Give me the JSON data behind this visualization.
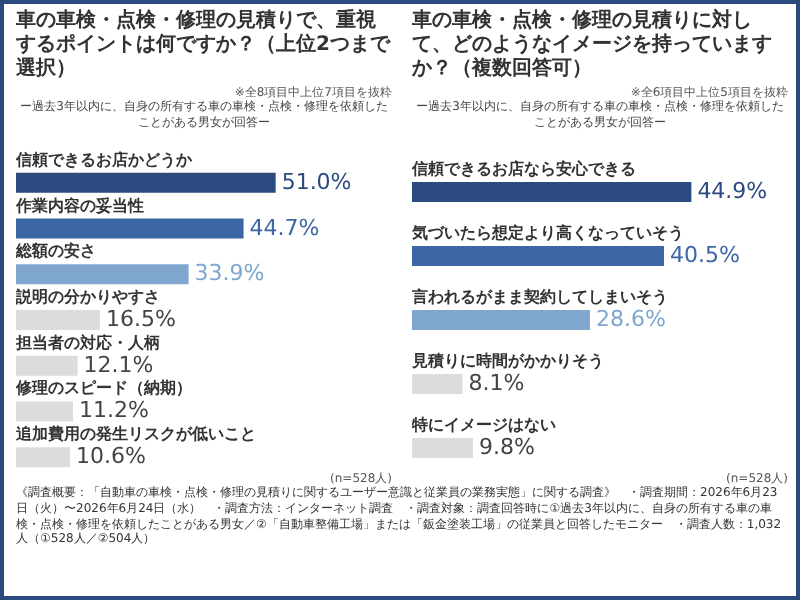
{
  "chart_data": [
    {
      "type": "bar",
      "orientation": "horizontal",
      "title": "車の車検・点検・修理の見積りで、重視するポイントは何ですか？（上位2つまで選択）",
      "subtitle": "ー過去3年以内に、自身の所有する車の車検・点検・修理を依頼したことがある男女が回答ー",
      "categories": [
        "信頼できるお店かどうか",
        "作業内容の妥当性",
        "総額の安さ",
        "説明の分かりやすさ",
        "担当者の対応・人柄",
        "修理のスピード（納期）",
        "追加費用の発生リスクが低いこと"
      ],
      "values": [
        51.0,
        44.7,
        33.9,
        16.5,
        12.1,
        11.2,
        10.6
      ],
      "value_labels": [
        "51.0%",
        "44.7%",
        "33.9%",
        "16.5%",
        "12.1%",
        "11.2%",
        "10.6%"
      ],
      "colors": [
        "#2b4a7f",
        "#3c66a5",
        "#7ea6cf",
        "#dcdcdc",
        "#dcdcdc",
        "#dcdcdc",
        "#dcdcdc"
      ],
      "annotations": [
        "※全8項目中上位7項目を抜粋",
        "(n=528人)",
        "《調査概要：「自動車の車検・点検・修理の見積りに関するユーザー意識と従業員の業務実態」に関する調査》",
        "・調査期間：2026年6月23日（火）〜2026年6月24日（水）",
        "・調査方法：インターネット調査",
        "・調査対象：調査回答時に①過去3年以内に、自身の所有する車の車検・点検・修理を依頼したことがある男女／②「自動車整備工場」または「鈑金塗装工場」の従業員と回答したモニター",
        "・調査人数：1,032人（①528人／②504人）"
      ]
    },
    {
      "type": "bar",
      "orientation": "horizontal",
      "title": "車の車検・点検・修理の見積りに対して、どのようなイメージを持っていますか？（複数回答可）",
      "subtitle": "ー過去3年以内に、自身の所有する車の車検・点検・修理を依頼したことがある男女が回答ー",
      "categories": [
        "信頼できるお店なら安心できる",
        "気づいたら想定より高くなっていそう",
        "言われるがまま契約してしまいそう",
        "見積りに時間がかかりそう",
        "特にイメージはない"
      ],
      "values": [
        44.9,
        40.5,
        28.6,
        8.1,
        9.8
      ],
      "value_labels": [
        "44.9%",
        "40.5%",
        "28.6%",
        "8.1%",
        "9.8%"
      ],
      "colors": [
        "#2b4a7f",
        "#3c66a5",
        "#7ea6cf",
        "#dcdcdc",
        "#dcdcdc"
      ],
      "annotations": [
        "※全6項目中上位5項目を抜粋",
        "(n=528人)"
      ]
    }
  ]
}
